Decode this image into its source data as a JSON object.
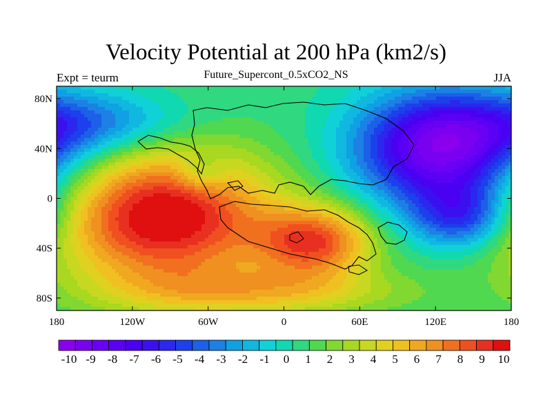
{
  "title": "Velocity Potential at 200 hPa (km2/s)",
  "subtitle": "Future_Supercont_0.5xCO2_NS",
  "left_label": "Expt = teurm",
  "right_label": "JJA",
  "map": {
    "x_ticks": [
      "180",
      "120W",
      "60W",
      "0",
      "60E",
      "120E",
      "180"
    ],
    "y_ticks": [
      "80N",
      "40N",
      "0",
      "40S",
      "80S"
    ],
    "lon_range": [
      -180,
      180
    ],
    "lat_range": [
      -90,
      90
    ],
    "color_scale": {
      "min": -10.5,
      "max": 10.5,
      "colors": [
        "#8a00ee",
        "#7a00f2",
        "#6a00f4",
        "#5a00f4",
        "#4a00f2",
        "#3a10f0",
        "#2a28ee",
        "#1c40ec",
        "#1c60e8",
        "#1c80e4",
        "#10a0e4",
        "#10b8e0",
        "#10d0d8",
        "#10d8b0",
        "#30d880",
        "#50d850",
        "#80d830",
        "#a8d820",
        "#c8d820",
        "#e0d020",
        "#f0c020",
        "#f0a820",
        "#f09020",
        "#f07020",
        "#f05020",
        "#e83020",
        "#e01010"
      ],
      "labels": [
        "-10",
        "-9",
        "-8",
        "-7",
        "-6",
        "-5",
        "-4",
        "-3",
        "-2",
        "-1",
        "0",
        "1",
        "2",
        "3",
        "4",
        "5",
        "6",
        "7",
        "8",
        "9",
        "10"
      ]
    },
    "centers": [
      {
        "lon": -95,
        "lat": -15,
        "value": 10.2,
        "spread_lon": 60,
        "spread_lat": 38
      },
      {
        "lon": 25,
        "lat": -35,
        "value": 7.5,
        "spread_lon": 32,
        "spread_lat": 20
      },
      {
        "lon": 125,
        "lat": 40,
        "value": -10.4,
        "spread_lon": 48,
        "spread_lat": 32
      },
      {
        "lon": 140,
        "lat": -15,
        "value": -5.5,
        "spread_lon": 28,
        "spread_lat": 18
      },
      {
        "lon": -150,
        "lat": 60,
        "value": -4.0,
        "spread_lon": 50,
        "spread_lat": 18
      },
      {
        "lon": -20,
        "lat": -75,
        "value": 4.0,
        "spread_lon": 80,
        "spread_lat": 14
      },
      {
        "lon": -65,
        "lat": 20,
        "value": -2.5,
        "spread_lon": 14,
        "spread_lat": 10
      }
    ]
  }
}
